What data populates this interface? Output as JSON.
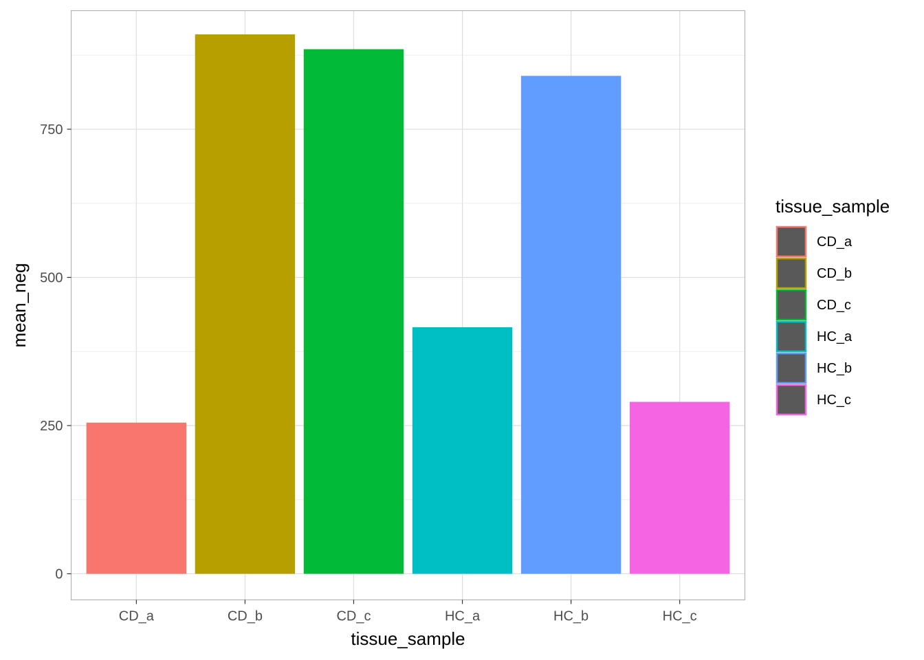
{
  "chart_data": {
    "type": "bar",
    "categories": [
      "CD_a",
      "CD_b",
      "CD_c",
      "HC_a",
      "HC_b",
      "HC_c"
    ],
    "values": [
      255,
      910,
      885,
      416,
      840,
      290
    ],
    "colors": [
      "#F8766D",
      "#B79F00",
      "#00BA38",
      "#00BFC4",
      "#619CFF",
      "#F564E3"
    ],
    "xlabel": "tissue_sample",
    "ylabel": "mean_neg",
    "ylim": [
      -44,
      950
    ],
    "yticks": [
      0,
      250,
      500,
      750
    ],
    "ytick_labels": [
      "0",
      "250",
      "500",
      "750"
    ],
    "grid": true,
    "legend": {
      "title": "tissue_sample",
      "position": "right",
      "entries": [
        "CD_a",
        "CD_b",
        "CD_c",
        "HC_a",
        "HC_b",
        "HC_c"
      ],
      "key_fill": "#595959"
    }
  }
}
